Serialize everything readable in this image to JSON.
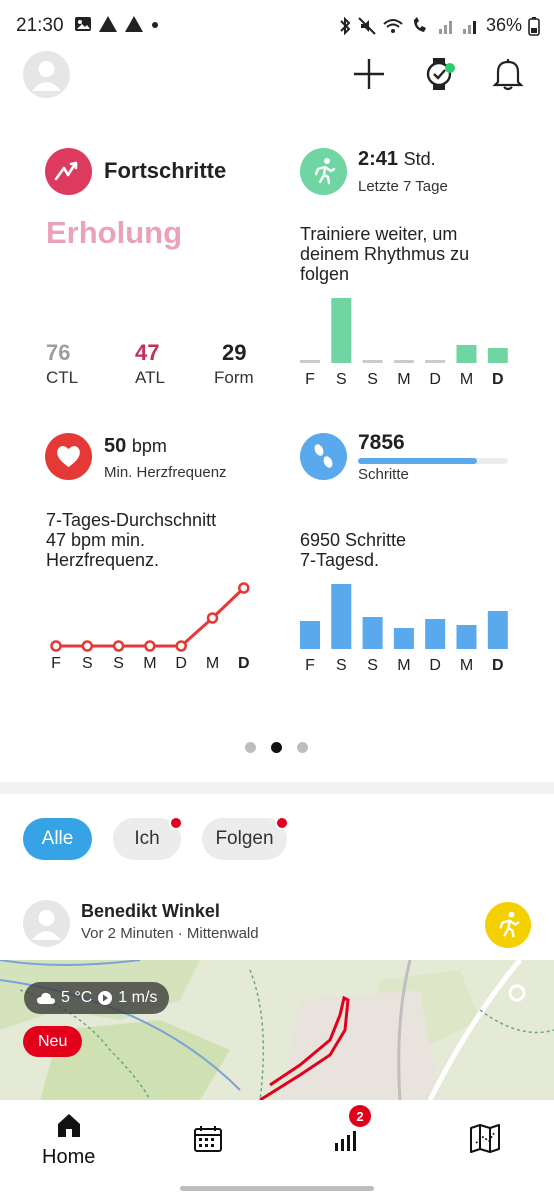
{
  "status_bar": {
    "time": "21:30",
    "battery": "36%",
    "icons": [
      "image-icon",
      "alert-icon",
      "alert-icon",
      "dot-icon",
      "bluetooth-icon",
      "mute-icon",
      "wifi-icon",
      "wifi-calling-icon",
      "signal-icon",
      "signal-icon",
      "battery-icon"
    ]
  },
  "header": {
    "icons": [
      "avatar-icon",
      "plus-icon",
      "watch-icon",
      "bell-icon"
    ]
  },
  "progress": {
    "title": "Fortschritte",
    "status": "Erholung",
    "ctl": {
      "value": "76",
      "label": "CTL"
    },
    "atl": {
      "value": "47",
      "label": "ATL"
    },
    "form": {
      "value": "29",
      "label": "Form"
    }
  },
  "training": {
    "duration": "2:41",
    "unit": "Std.",
    "period": "Letzte 7 Tage",
    "message": "Trainiere weiter, um deinem Rhythmus zu folgen",
    "chart_data": {
      "type": "bar",
      "categories": [
        "F",
        "S",
        "S",
        "M",
        "D",
        "M",
        "D"
      ],
      "values": [
        0,
        65,
        0,
        0,
        0,
        18,
        15
      ]
    }
  },
  "heart_rate": {
    "value": "50",
    "unit": "bpm",
    "label": "Min. Herzfrequenz",
    "avg_line1": "7-Tages-Durchschnitt",
    "avg_line2": "47 bpm min.",
    "avg_line3": "Herzfrequenz.",
    "chart_data": {
      "type": "line",
      "categories": [
        "F",
        "S",
        "S",
        "M",
        "D",
        "M",
        "D"
      ],
      "values": [
        0,
        0,
        0,
        0,
        0,
        28,
        58
      ]
    }
  },
  "steps": {
    "value": "7856",
    "label": "Schritte",
    "progress_fraction": 0.79,
    "avg_line1": "6950 Schritte",
    "avg_line2": "7-Tagesd.",
    "chart_data": {
      "type": "bar",
      "categories": [
        "F",
        "S",
        "S",
        "M",
        "D",
        "M",
        "D"
      ],
      "values": [
        28,
        65,
        32,
        21,
        30,
        24,
        38
      ]
    }
  },
  "pager": {
    "count": 3,
    "active": 1
  },
  "filters": {
    "all": "Alle",
    "me": "Ich",
    "follow": "Folgen"
  },
  "feed": {
    "name": "Benedikt Winkel",
    "meta": "Vor 2 Minuten · Mittenwald",
    "weather": "5 °C",
    "wind": "1 m/s",
    "badge": "Neu"
  },
  "bottom_nav": {
    "home": "Home",
    "stats_badge": "2"
  },
  "colors": {
    "accent": "#35a3e6",
    "green": "#6fd6a3",
    "red": "#e53935",
    "pink": "#e9a2b8",
    "atl": "#c62e57",
    "blue_bar": "#5aa9ec"
  }
}
